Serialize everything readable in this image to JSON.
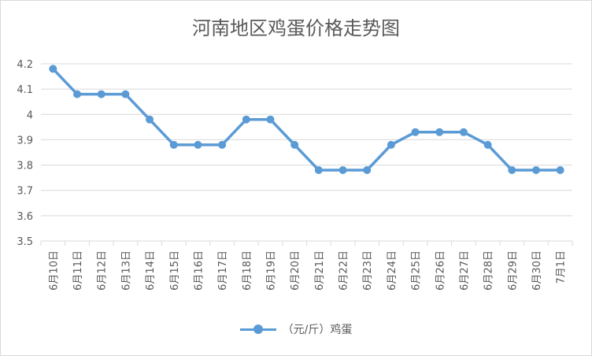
{
  "colors": {
    "series": "#5b9bd5",
    "grid": "#d9d9d9",
    "text": "#595959"
  },
  "chart_data": {
    "type": "line",
    "title": "河南地区鸡蛋价格走势图",
    "xlabel": "",
    "ylabel": "",
    "ylim": [
      3.5,
      4.2
    ],
    "yticks": [
      "3.5",
      "3.6",
      "3.7",
      "3.8",
      "3.9",
      "4",
      "4.1",
      "4.2"
    ],
    "grid": true,
    "legend_position": "bottom",
    "categories": [
      "6月10日",
      "6月11日",
      "6月12日",
      "6月13日",
      "6月14日",
      "6月15日",
      "6月16日",
      "6月17日",
      "6月18日",
      "6月19日",
      "6月20日",
      "6月21日",
      "6月22日",
      "6月23日",
      "6月24日",
      "6月25日",
      "6月26日",
      "6月27日",
      "6月28日",
      "6月29日",
      "6月30日",
      "7月1日"
    ],
    "series": [
      {
        "name": "（元/斤）鸡蛋",
        "values": [
          4.18,
          4.08,
          4.08,
          4.08,
          3.98,
          3.88,
          3.88,
          3.88,
          3.98,
          3.98,
          3.88,
          3.78,
          3.78,
          3.78,
          3.88,
          3.93,
          3.93,
          3.93,
          3.88,
          3.78,
          3.78,
          3.78
        ]
      }
    ]
  }
}
